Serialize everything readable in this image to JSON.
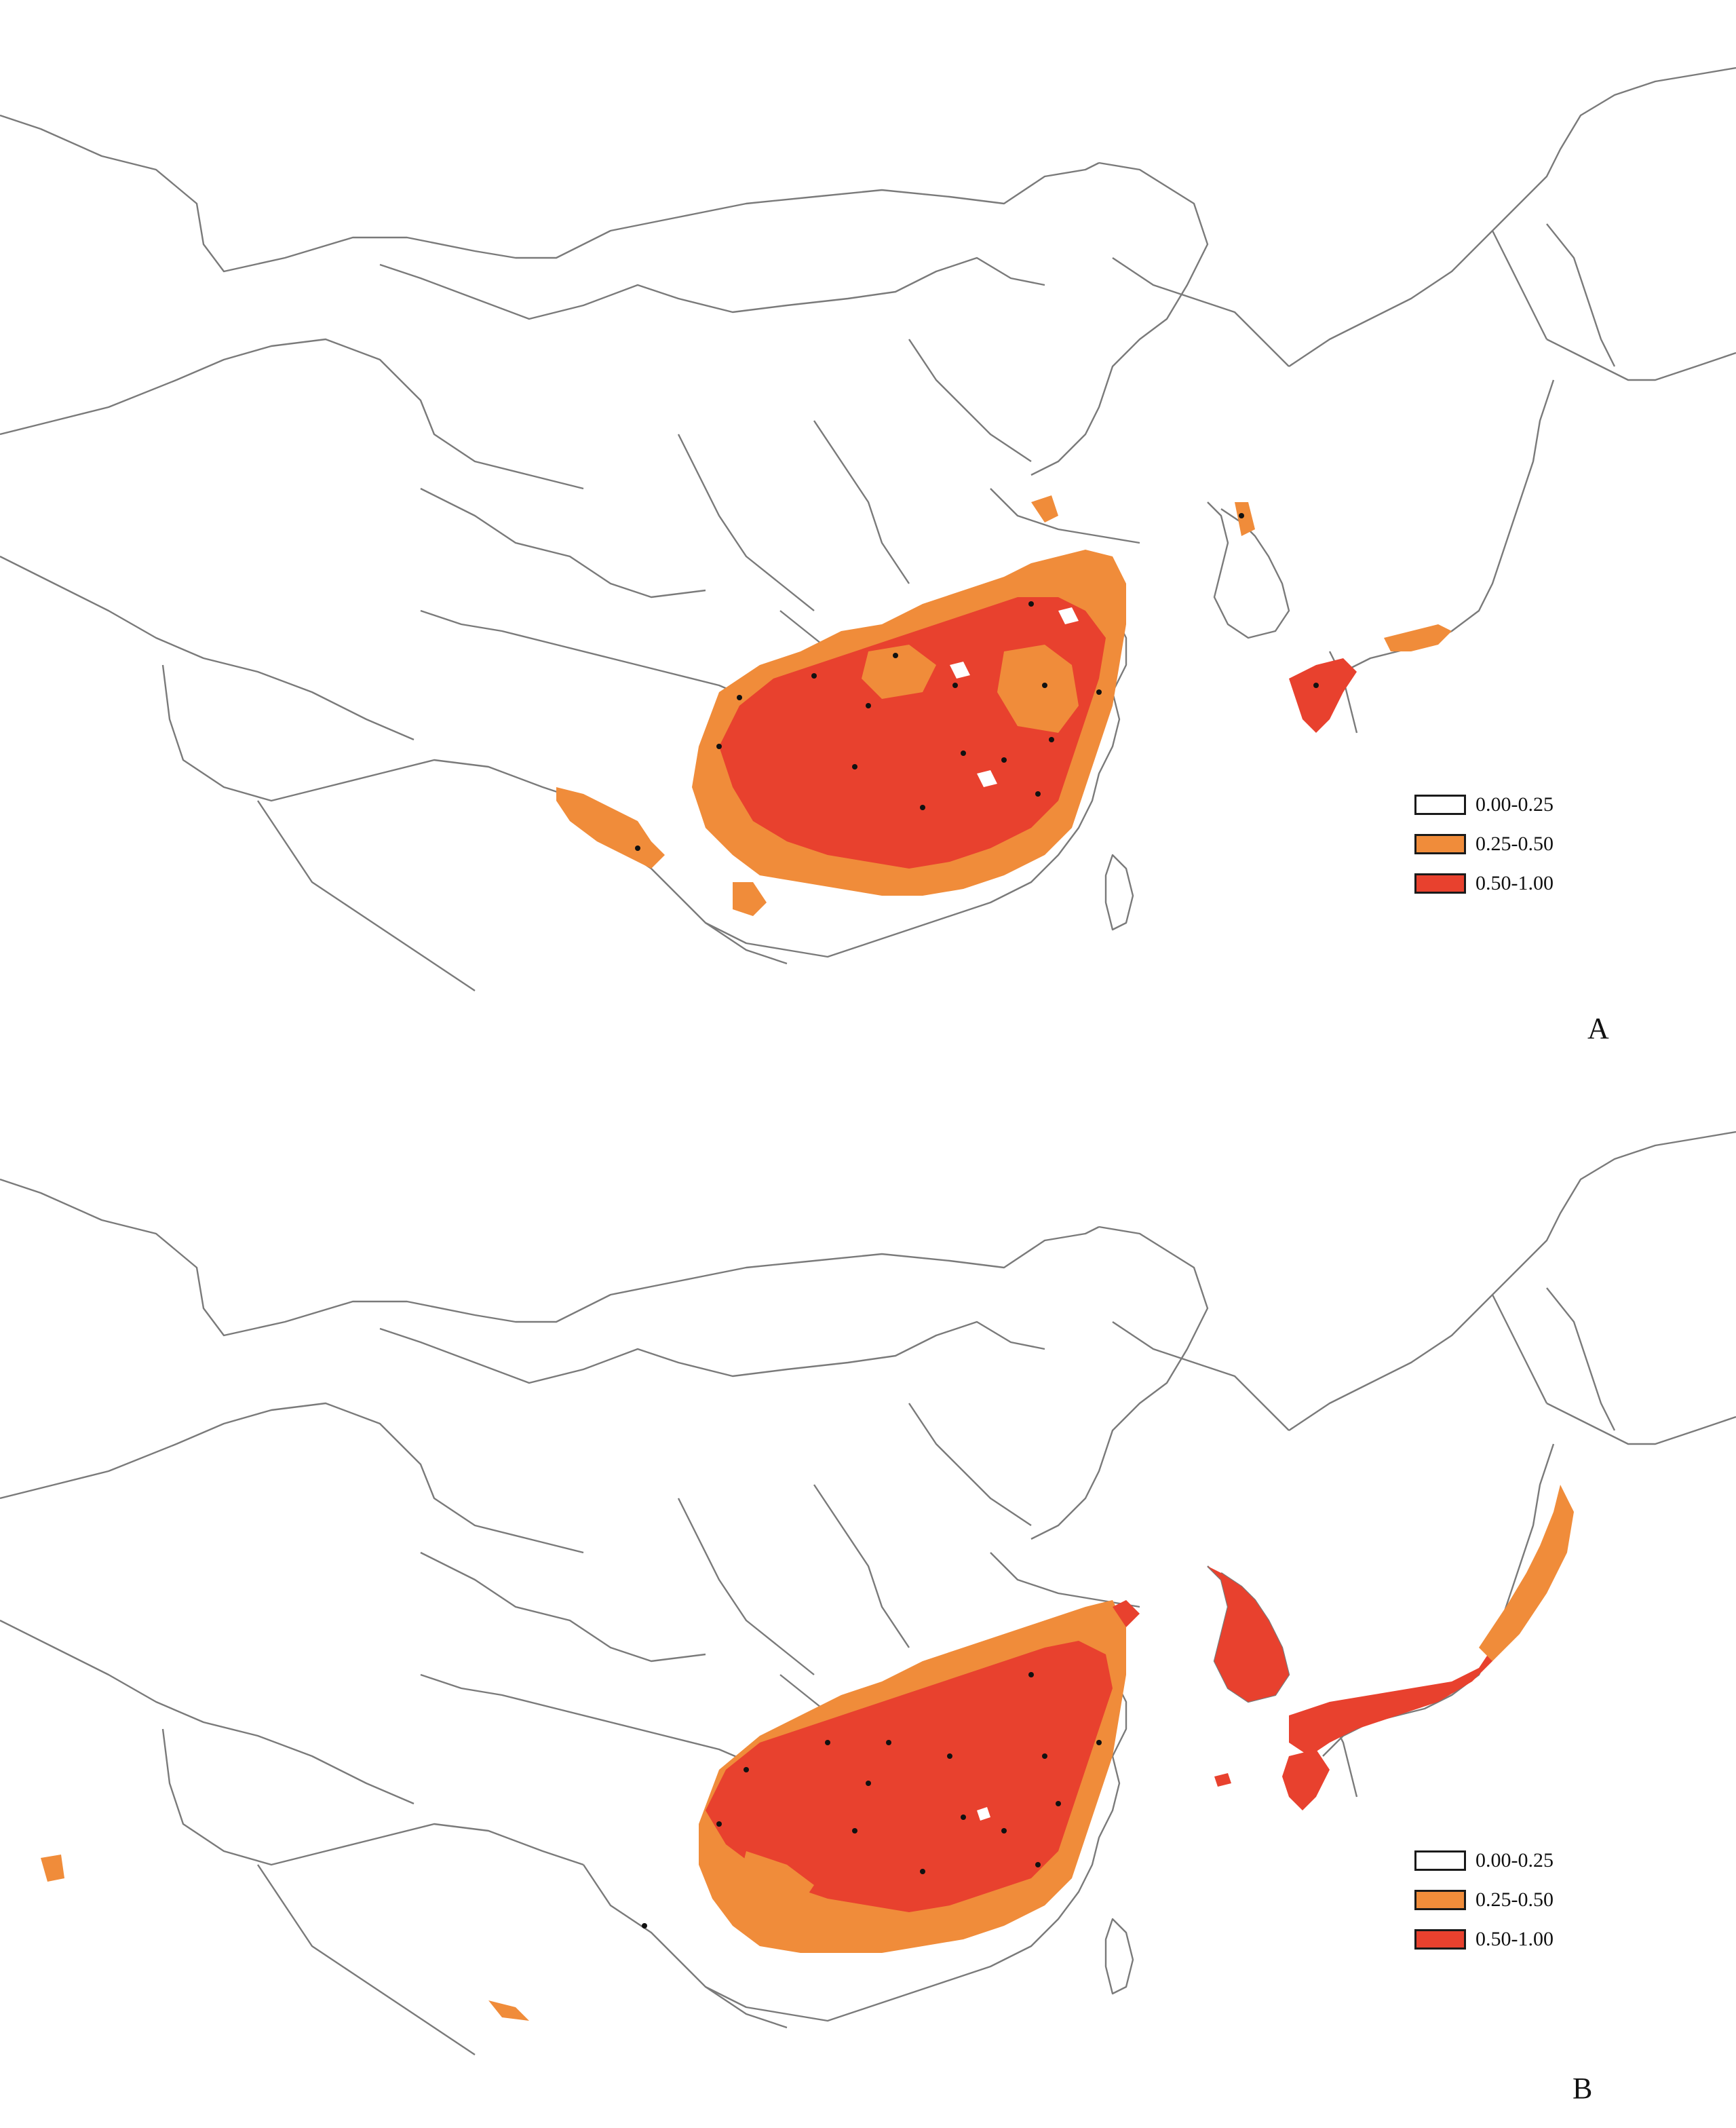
{
  "legend": {
    "classes": [
      {
        "label": "0.00-0.25",
        "color": "#ffffff"
      },
      {
        "label": "0.25-0.50",
        "color": "#f08c3a"
      },
      {
        "label": "0.50-1.00",
        "color": "#e8412e"
      }
    ]
  },
  "panels": [
    {
      "id": "A",
      "label": "A"
    },
    {
      "id": "B",
      "label": "B"
    }
  ],
  "colors": {
    "boundary": "#7a7a7a",
    "occurrence": "#111111"
  }
}
